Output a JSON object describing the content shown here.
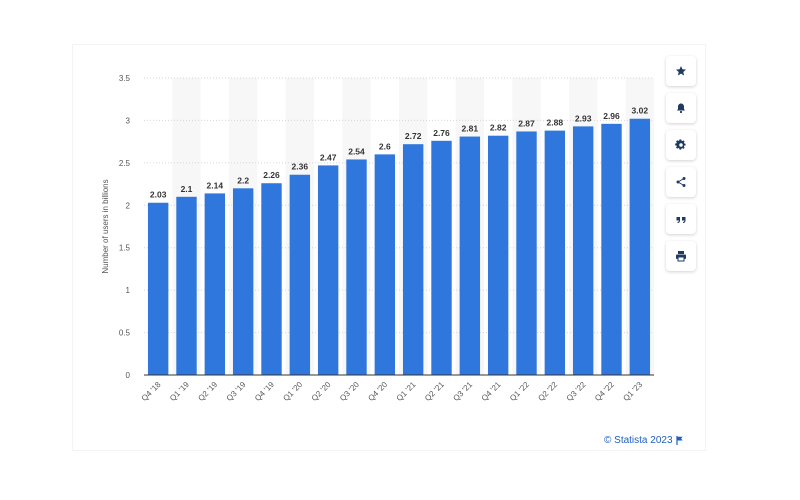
{
  "chart_data": {
    "type": "bar",
    "categories": [
      "Q4 '18",
      "Q1 '19",
      "Q2 '19",
      "Q3 '19",
      "Q4 '19",
      "Q1 '20",
      "Q2 '20",
      "Q3 '20",
      "Q4 '20",
      "Q1 '21",
      "Q2 '21",
      "Q3 '21",
      "Q4 '21",
      "Q1 '22",
      "Q2 '22",
      "Q3 '22",
      "Q4 '22",
      "Q1 '23"
    ],
    "values": [
      2.03,
      2.1,
      2.14,
      2.2,
      2.26,
      2.36,
      2.47,
      2.54,
      2.6,
      2.72,
      2.76,
      2.81,
      2.82,
      2.87,
      2.88,
      2.93,
      2.96,
      3.02
    ],
    "value_labels": [
      "2.03",
      "2.1",
      "2.14",
      "2.2",
      "2.26",
      "2.36",
      "2.47",
      "2.54",
      "2.6",
      "2.72",
      "2.76",
      "2.81",
      "2.82",
      "2.87",
      "2.88",
      "2.93",
      "2.96",
      "3.02"
    ],
    "ylabel": "Number of users in billions",
    "xlabel": "",
    "title": "",
    "ylim": [
      0,
      3.5
    ],
    "yticks": [
      0,
      0.5,
      1,
      1.5,
      2,
      2.5,
      3,
      3.5
    ],
    "ytick_labels": [
      "0",
      "0.5",
      "1",
      "1.5",
      "2",
      "2.5",
      "3",
      "3.5"
    ],
    "grid": true,
    "bar_color": "#2f77dc",
    "band_color": "#f7f7f7"
  },
  "toolbar": {
    "buttons": [
      {
        "name": "star-icon"
      },
      {
        "name": "bell-icon"
      },
      {
        "name": "gear-icon"
      },
      {
        "name": "share-icon"
      },
      {
        "name": "quote-icon"
      },
      {
        "name": "print-icon"
      }
    ]
  },
  "credit": {
    "text": "© Statista 2023",
    "icon": "flag-icon"
  }
}
